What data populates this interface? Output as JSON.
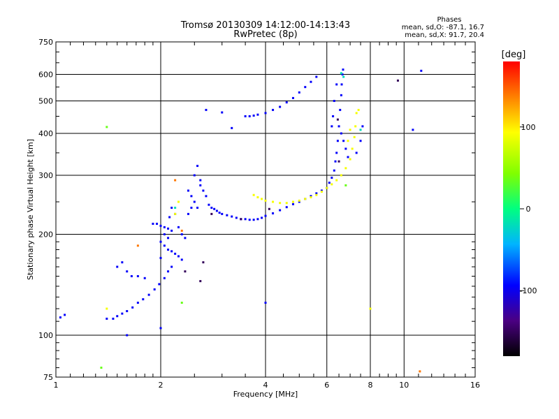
{
  "chart_data": {
    "type": "scatter",
    "title": "Tromsø 20130309 14:12:00-14:13:43",
    "subtitle": "RwPretec (8p)",
    "xlabel": "Frequency [MHz]",
    "ylabel": "Stationary phase Virtual Height [km]",
    "x_scale": "log",
    "y_scale": "log",
    "xlim": [
      1,
      16
    ],
    "ylim": [
      75,
      750
    ],
    "grid": true,
    "x_ticks": [
      {
        "value": 1,
        "label": "1"
      },
      {
        "value": 2,
        "label": "2"
      },
      {
        "value": 4,
        "label": "4"
      },
      {
        "value": 6,
        "label": "6"
      },
      {
        "value": 8,
        "label": "8"
      },
      {
        "value": 10,
        "label": "10"
      },
      {
        "value": 16,
        "label": "16"
      }
    ],
    "y_ticks": [
      {
        "value": 75,
        "label": "75"
      },
      {
        "value": 100,
        "label": "100"
      },
      {
        "value": 200,
        "label": "200"
      },
      {
        "value": 300,
        "label": "300"
      },
      {
        "value": 400,
        "label": "400"
      },
      {
        "value": 500,
        "label": "500"
      },
      {
        "value": 600,
        "label": "600"
      },
      {
        "value": 750,
        "label": "750"
      }
    ],
    "x_major_grid": [
      2,
      4,
      6,
      8,
      10
    ],
    "y_major_grid": [
      100,
      200,
      300,
      400,
      500,
      600
    ],
    "stats": {
      "heading": "Phases",
      "line_o": "mean, sd,O: -87.1, 16.7",
      "line_x": "mean, sd,X:  91.7, 20.4"
    },
    "colorbar": {
      "label": "[deg]",
      "min": -180,
      "max": 180,
      "ticks": [
        {
          "value": 100,
          "label": "100"
        },
        {
          "value": 0,
          "label": "0"
        },
        {
          "value": -100,
          "label": "-100"
        }
      ]
    },
    "series": [
      {
        "phase": -95,
        "points": [
          [
            1.03,
            113
          ],
          [
            1.06,
            115
          ],
          [
            1.4,
            112
          ],
          [
            1.46,
            112
          ],
          [
            1.5,
            114
          ],
          [
            1.55,
            116
          ],
          [
            1.6,
            118
          ],
          [
            1.66,
            121
          ],
          [
            1.72,
            125
          ],
          [
            1.78,
            128
          ],
          [
            1.85,
            132
          ],
          [
            1.92,
            137
          ],
          [
            1.98,
            142
          ],
          [
            2.05,
            148
          ],
          [
            2.1,
            155
          ],
          [
            2.15,
            160
          ],
          [
            1.5,
            160
          ],
          [
            1.55,
            165
          ],
          [
            1.6,
            155
          ],
          [
            1.65,
            150
          ],
          [
            1.72,
            150
          ],
          [
            1.8,
            148
          ],
          [
            1.9,
            215
          ],
          [
            1.95,
            215
          ],
          [
            2.0,
            212
          ],
          [
            2.05,
            210
          ],
          [
            2.1,
            208
          ],
          [
            2.15,
            205
          ],
          [
            2.0,
            190
          ],
          [
            2.05,
            185
          ],
          [
            2.1,
            180
          ],
          [
            2.15,
            178
          ],
          [
            2.2,
            175
          ],
          [
            2.25,
            172
          ],
          [
            2.3,
            168
          ],
          [
            2.0,
            170
          ],
          [
            2.05,
            200
          ],
          [
            2.1,
            195
          ],
          [
            2.12,
            225
          ],
          [
            2.15,
            240
          ],
          [
            2.2,
            230
          ],
          [
            2.25,
            210
          ],
          [
            2.3,
            200
          ],
          [
            2.35,
            195
          ],
          [
            2.4,
            270
          ],
          [
            2.45,
            260
          ],
          [
            2.5,
            250
          ],
          [
            2.55,
            240
          ],
          [
            2.6,
            280
          ],
          [
            2.65,
            270
          ],
          [
            2.7,
            260
          ],
          [
            2.4,
            230
          ],
          [
            2.45,
            240
          ],
          [
            2.5,
            300
          ],
          [
            2.55,
            320
          ],
          [
            2.6,
            290
          ],
          [
            2.75,
            245
          ],
          [
            2.8,
            240
          ],
          [
            2.85,
            238
          ],
          [
            2.9,
            235
          ],
          [
            2.95,
            232
          ],
          [
            3.0,
            230
          ],
          [
            3.1,
            228
          ],
          [
            3.2,
            226
          ],
          [
            3.3,
            224
          ],
          [
            3.4,
            222
          ],
          [
            3.5,
            222
          ],
          [
            3.6,
            221
          ],
          [
            3.7,
            221
          ],
          [
            3.8,
            222
          ],
          [
            3.9,
            224
          ],
          [
            4.0,
            227
          ],
          [
            4.2,
            231
          ],
          [
            4.4,
            236
          ],
          [
            4.6,
            241
          ],
          [
            4.8,
            246
          ],
          [
            5.0,
            250
          ],
          [
            5.2,
            255
          ],
          [
            5.4,
            260
          ],
          [
            5.6,
            265
          ],
          [
            5.8,
            270
          ],
          [
            6.0,
            275
          ],
          [
            6.1,
            285
          ],
          [
            6.2,
            295
          ],
          [
            6.3,
            310
          ],
          [
            6.35,
            330
          ],
          [
            6.4,
            350
          ],
          [
            6.45,
            380
          ],
          [
            6.5,
            420
          ],
          [
            6.55,
            470
          ],
          [
            6.6,
            520
          ],
          [
            6.62,
            560
          ],
          [
            6.65,
            600
          ],
          [
            6.68,
            620
          ],
          [
            6.4,
            560
          ],
          [
            6.3,
            500
          ],
          [
            6.25,
            450
          ],
          [
            6.2,
            420
          ],
          [
            6.6,
            400
          ],
          [
            6.7,
            380
          ],
          [
            6.8,
            360
          ],
          [
            6.9,
            340
          ],
          [
            3.5,
            450
          ],
          [
            3.6,
            450
          ],
          [
            3.7,
            452
          ],
          [
            3.8,
            455
          ],
          [
            4.0,
            460
          ],
          [
            4.2,
            470
          ],
          [
            4.4,
            480
          ],
          [
            4.6,
            495
          ],
          [
            4.8,
            510
          ],
          [
            5.0,
            530
          ],
          [
            5.2,
            550
          ],
          [
            5.4,
            570
          ],
          [
            5.6,
            590
          ],
          [
            3.2,
            415
          ],
          [
            3.0,
            462
          ],
          [
            2.7,
            470
          ],
          [
            7.3,
            350
          ],
          [
            7.5,
            380
          ],
          [
            7.6,
            420
          ],
          [
            11.2,
            615
          ],
          [
            10.6,
            410
          ],
          [
            2.0,
            105
          ],
          [
            1.6,
            100
          ],
          [
            4.0,
            125
          ]
        ]
      },
      {
        "phase": 90,
        "points": [
          [
            3.7,
            262
          ],
          [
            3.8,
            258
          ],
          [
            3.9,
            255
          ],
          [
            4.0,
            252
          ],
          [
            4.2,
            250
          ],
          [
            4.4,
            248
          ],
          [
            4.6,
            248
          ],
          [
            4.8,
            250
          ],
          [
            5.0,
            252
          ],
          [
            5.2,
            255
          ],
          [
            5.4,
            258
          ],
          [
            5.6,
            262
          ],
          [
            5.8,
            268
          ],
          [
            6.0,
            275
          ],
          [
            6.2,
            282
          ],
          [
            6.4,
            290
          ],
          [
            6.6,
            300
          ],
          [
            6.8,
            315
          ],
          [
            7.0,
            335
          ],
          [
            7.1,
            360
          ],
          [
            7.2,
            390
          ],
          [
            7.25,
            420
          ],
          [
            7.3,
            460
          ],
          [
            6.9,
            380
          ],
          [
            7.0,
            410
          ],
          [
            2.2,
            230
          ],
          [
            2.25,
            250
          ],
          [
            7.4,
            470
          ],
          [
            1.4,
            120
          ],
          [
            8.0,
            120
          ]
        ]
      },
      {
        "phase": -150,
        "points": [
          [
            2.35,
            155
          ],
          [
            2.6,
            145
          ],
          [
            2.65,
            165
          ],
          [
            3.4,
            222
          ],
          [
            4.1,
            238
          ],
          [
            9.6,
            575
          ],
          [
            2.8,
            230
          ],
          [
            6.45,
            440
          ],
          [
            6.5,
            330
          ]
        ]
      },
      {
        "phase": 140,
        "points": [
          [
            1.72,
            185
          ],
          [
            2.3,
            205
          ],
          [
            2.2,
            290
          ],
          [
            11.1,
            78
          ]
        ]
      },
      {
        "phase": 35,
        "points": [
          [
            1.4,
            418
          ],
          [
            1.35,
            80
          ],
          [
            2.3,
            125
          ],
          [
            6.8,
            280
          ]
        ]
      },
      {
        "phase": -20,
        "points": [
          [
            6.6,
            605
          ],
          [
            6.7,
            590
          ],
          [
            7.5,
            410
          ],
          [
            2.2,
            240
          ]
        ]
      }
    ]
  }
}
